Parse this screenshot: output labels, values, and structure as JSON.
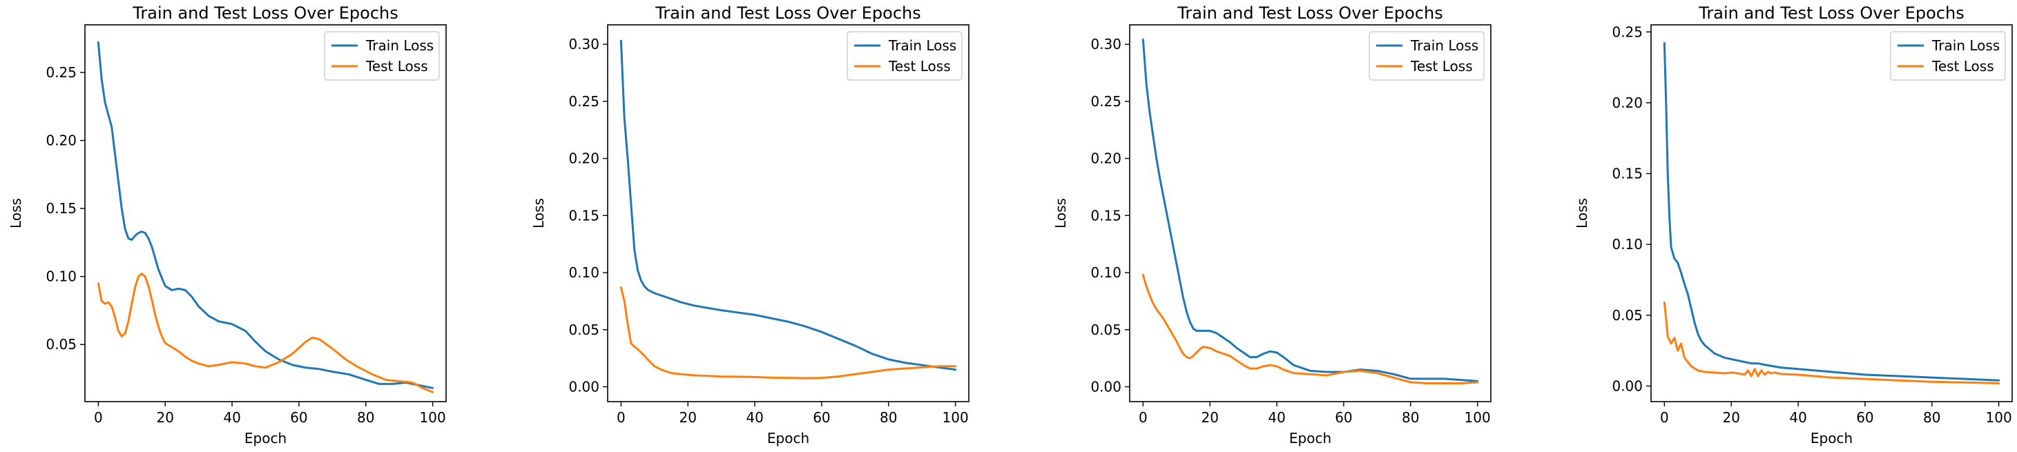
{
  "figure": {
    "colors": {
      "train": "#1f77b4",
      "test": "#ff7f0e",
      "axis": "#000000",
      "legend_border": "#cccccc"
    }
  },
  "chart_data": [
    {
      "type": "line",
      "title": "Train and Test Loss Over Epochs",
      "xlabel": "Epoch",
      "ylabel": "Loss",
      "xlim": [
        -4,
        104
      ],
      "ylim": [
        0.008,
        0.285
      ],
      "xticks": [
        0,
        20,
        40,
        60,
        80,
        100
      ],
      "yticks": [
        0.05,
        0.1,
        0.15,
        0.2,
        0.25
      ],
      "ytick_labels": [
        "0.05",
        "0.10",
        "0.15",
        "0.20",
        "0.25"
      ],
      "legend": {
        "location": "top-right",
        "entries": [
          "Train Loss",
          "Test Loss"
        ]
      },
      "series": [
        {
          "name": "Train Loss",
          "color": "#1f77b4",
          "x": [
            0,
            1,
            2,
            3,
            4,
            5,
            6,
            7,
            8,
            9,
            10,
            11,
            12,
            13,
            14,
            15,
            16,
            18,
            20,
            22,
            24,
            26,
            28,
            30,
            33,
            36,
            40,
            44,
            47,
            50,
            54,
            58,
            62,
            66,
            70,
            75,
            80,
            84,
            88,
            92,
            96,
            100
          ],
          "y": [
            0.272,
            0.245,
            0.228,
            0.219,
            0.21,
            0.19,
            0.17,
            0.15,
            0.135,
            0.128,
            0.127,
            0.13,
            0.132,
            0.133,
            0.132,
            0.128,
            0.122,
            0.105,
            0.093,
            0.09,
            0.091,
            0.09,
            0.085,
            0.078,
            0.071,
            0.067,
            0.065,
            0.06,
            0.052,
            0.045,
            0.039,
            0.035,
            0.033,
            0.032,
            0.03,
            0.028,
            0.024,
            0.021,
            0.021,
            0.022,
            0.02,
            0.018
          ]
        },
        {
          "name": "Test Loss",
          "color": "#ff7f0e",
          "x": [
            0,
            1,
            2,
            3,
            4,
            5,
            6,
            7,
            8,
            9,
            10,
            11,
            12,
            13,
            14,
            15,
            16,
            17,
            18,
            19,
            20,
            22,
            24,
            26,
            28,
            30,
            33,
            36,
            40,
            44,
            47,
            50,
            54,
            58,
            62,
            64,
            66,
            70,
            74,
            78,
            82,
            86,
            90,
            94,
            97,
            100
          ],
          "y": [
            0.095,
            0.082,
            0.08,
            0.081,
            0.078,
            0.07,
            0.06,
            0.056,
            0.058,
            0.067,
            0.08,
            0.092,
            0.1,
            0.102,
            0.1,
            0.093,
            0.083,
            0.072,
            0.063,
            0.056,
            0.051,
            0.048,
            0.045,
            0.041,
            0.038,
            0.036,
            0.034,
            0.035,
            0.037,
            0.036,
            0.034,
            0.033,
            0.037,
            0.043,
            0.052,
            0.055,
            0.054,
            0.047,
            0.039,
            0.033,
            0.028,
            0.024,
            0.023,
            0.022,
            0.018,
            0.015
          ]
        }
      ]
    },
    {
      "type": "line",
      "title": "Train and Test Loss Over Epochs",
      "xlabel": "Epoch",
      "ylabel": "Loss",
      "xlim": [
        -4,
        104
      ],
      "ylim": [
        -0.013,
        0.317
      ],
      "xticks": [
        0,
        20,
        40,
        60,
        80,
        100
      ],
      "yticks": [
        0.0,
        0.05,
        0.1,
        0.15,
        0.2,
        0.25,
        0.3
      ],
      "ytick_labels": [
        "0.00",
        "0.05",
        "0.10",
        "0.15",
        "0.20",
        "0.25",
        "0.30"
      ],
      "legend": {
        "location": "top-right",
        "entries": [
          "Train Loss",
          "Test Loss"
        ]
      },
      "series": [
        {
          "name": "Train Loss",
          "color": "#1f77b4",
          "x": [
            0,
            1,
            2,
            3,
            4,
            5,
            6,
            7,
            8,
            10,
            12,
            15,
            18,
            22,
            26,
            30,
            35,
            40,
            45,
            50,
            55,
            60,
            65,
            70,
            75,
            80,
            85,
            90,
            95,
            100
          ],
          "y": [
            0.303,
            0.235,
            0.2,
            0.16,
            0.12,
            0.102,
            0.093,
            0.088,
            0.085,
            0.082,
            0.08,
            0.077,
            0.074,
            0.071,
            0.069,
            0.067,
            0.065,
            0.063,
            0.06,
            0.057,
            0.053,
            0.048,
            0.042,
            0.036,
            0.029,
            0.024,
            0.021,
            0.019,
            0.017,
            0.015
          ]
        },
        {
          "name": "Test Loss",
          "color": "#ff7f0e",
          "x": [
            0,
            1,
            2,
            3,
            4,
            5,
            6,
            7,
            8,
            9,
            10,
            12,
            15,
            18,
            22,
            26,
            30,
            35,
            40,
            45,
            50,
            55,
            60,
            65,
            70,
            75,
            80,
            85,
            90,
            95,
            100
          ],
          "y": [
            0.087,
            0.075,
            0.055,
            0.038,
            0.035,
            0.033,
            0.03,
            0.027,
            0.024,
            0.021,
            0.018,
            0.015,
            0.012,
            0.011,
            0.01,
            0.0095,
            0.009,
            0.0088,
            0.0085,
            0.008,
            0.0078,
            0.0075,
            0.0078,
            0.009,
            0.011,
            0.013,
            0.015,
            0.016,
            0.017,
            0.018,
            0.018
          ]
        }
      ]
    },
    {
      "type": "line",
      "title": "Train and Test Loss Over Epochs",
      "xlabel": "Epoch",
      "ylabel": "Loss",
      "xlim": [
        -4,
        104
      ],
      "ylim": [
        -0.013,
        0.317
      ],
      "xticks": [
        0,
        20,
        40,
        60,
        80,
        100
      ],
      "yticks": [
        0.0,
        0.05,
        0.1,
        0.15,
        0.2,
        0.25,
        0.3
      ],
      "ytick_labels": [
        "0.00",
        "0.05",
        "0.10",
        "0.15",
        "0.20",
        "0.25",
        "0.30"
      ],
      "legend": {
        "location": "top-right",
        "entries": [
          "Train Loss",
          "Test Loss"
        ]
      },
      "series": [
        {
          "name": "Train Loss",
          "color": "#1f77b4",
          "x": [
            0,
            1,
            2,
            3,
            4,
            5,
            6,
            7,
            8,
            9,
            10,
            11,
            12,
            13,
            14,
            15,
            16,
            17,
            18,
            20,
            22,
            24,
            26,
            28,
            30,
            32,
            34,
            36,
            38,
            40,
            42,
            45,
            50,
            55,
            60,
            65,
            70,
            75,
            80,
            85,
            90,
            95,
            100
          ],
          "y": [
            0.304,
            0.265,
            0.24,
            0.22,
            0.2,
            0.183,
            0.168,
            0.153,
            0.138,
            0.123,
            0.108,
            0.093,
            0.078,
            0.066,
            0.057,
            0.051,
            0.049,
            0.049,
            0.049,
            0.049,
            0.047,
            0.043,
            0.039,
            0.034,
            0.03,
            0.026,
            0.026,
            0.029,
            0.031,
            0.03,
            0.026,
            0.019,
            0.014,
            0.013,
            0.013,
            0.015,
            0.014,
            0.011,
            0.007,
            0.007,
            0.007,
            0.006,
            0.005
          ]
        },
        {
          "name": "Test Loss",
          "color": "#ff7f0e",
          "x": [
            0,
            1,
            2,
            3,
            4,
            5,
            6,
            7,
            8,
            9,
            10,
            11,
            12,
            13,
            14,
            15,
            16,
            17,
            18,
            20,
            22,
            24,
            26,
            28,
            30,
            32,
            34,
            36,
            38,
            40,
            42,
            45,
            50,
            55,
            60,
            65,
            70,
            75,
            80,
            85,
            90,
            95,
            100
          ],
          "y": [
            0.098,
            0.088,
            0.08,
            0.073,
            0.068,
            0.064,
            0.06,
            0.055,
            0.05,
            0.045,
            0.04,
            0.034,
            0.029,
            0.026,
            0.025,
            0.027,
            0.03,
            0.033,
            0.035,
            0.034,
            0.031,
            0.029,
            0.027,
            0.023,
            0.019,
            0.016,
            0.016,
            0.018,
            0.019,
            0.018,
            0.015,
            0.012,
            0.011,
            0.01,
            0.013,
            0.014,
            0.012,
            0.008,
            0.004,
            0.003,
            0.003,
            0.003,
            0.004
          ]
        }
      ]
    },
    {
      "type": "line",
      "title": "Train and Test Loss Over Epochs",
      "xlabel": "Epoch",
      "ylabel": "Loss",
      "xlim": [
        -4,
        104
      ],
      "ylim": [
        -0.011,
        0.255
      ],
      "xticks": [
        0,
        20,
        40,
        60,
        80,
        100
      ],
      "yticks": [
        0.0,
        0.05,
        0.1,
        0.15,
        0.2,
        0.25
      ],
      "ytick_labels": [
        "0.00",
        "0.05",
        "0.10",
        "0.15",
        "0.20",
        "0.25"
      ],
      "legend": {
        "location": "top-right",
        "entries": [
          "Train Loss",
          "Test Loss"
        ]
      },
      "series": [
        {
          "name": "Train Loss",
          "color": "#1f77b4",
          "x": [
            0,
            0.5,
            1,
            1.5,
            2,
            3,
            4,
            5,
            6,
            7,
            8,
            9,
            10,
            11,
            12,
            13,
            14,
            15,
            16,
            18,
            20,
            22,
            24,
            26,
            28,
            30,
            35,
            40,
            50,
            60,
            70,
            80,
            90,
            100
          ],
          "y": [
            0.242,
            0.2,
            0.15,
            0.12,
            0.098,
            0.09,
            0.087,
            0.08,
            0.072,
            0.065,
            0.055,
            0.045,
            0.037,
            0.032,
            0.029,
            0.027,
            0.025,
            0.023,
            0.022,
            0.02,
            0.019,
            0.018,
            0.017,
            0.016,
            0.016,
            0.015,
            0.013,
            0.012,
            0.01,
            0.008,
            0.007,
            0.006,
            0.005,
            0.004
          ]
        },
        {
          "name": "Test Loss",
          "color": "#ff7f0e",
          "x": [
            0,
            0.5,
            1,
            2,
            3,
            4,
            5,
            6,
            7,
            8,
            10,
            12,
            15,
            18,
            20,
            22,
            24,
            25,
            26,
            27,
            28,
            29,
            30,
            31,
            32,
            33,
            35,
            40,
            50,
            60,
            70,
            80,
            90,
            100
          ],
          "y": [
            0.059,
            0.048,
            0.035,
            0.03,
            0.034,
            0.025,
            0.03,
            0.02,
            0.017,
            0.014,
            0.011,
            0.01,
            0.0095,
            0.009,
            0.0095,
            0.009,
            0.008,
            0.011,
            0.007,
            0.012,
            0.007,
            0.011,
            0.008,
            0.01,
            0.009,
            0.0095,
            0.0085,
            0.008,
            0.006,
            0.005,
            0.004,
            0.003,
            0.0025,
            0.002
          ]
        }
      ]
    }
  ]
}
